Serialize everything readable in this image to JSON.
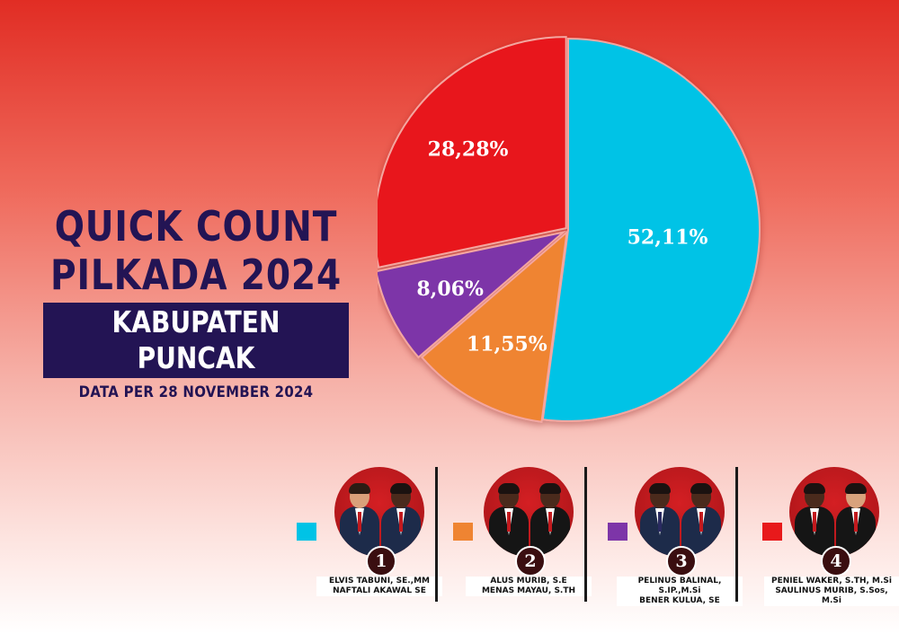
{
  "header": {
    "title_line1": "QUICK COUNT",
    "title_line2": "PILKADA 2024",
    "subtitle": "KABUPATEN PUNCAK",
    "date": "DATA PER 28 NOVEMBER 2024"
  },
  "chart_data": {
    "type": "pie",
    "slices": [
      {
        "label": "52,11%",
        "value": 52.11,
        "color": "#00c3e6"
      },
      {
        "label": "11,55%",
        "value": 11.55,
        "color": "#ef8432"
      },
      {
        "label": "8,06%",
        "value": 8.06,
        "color": "#7d35a8"
      },
      {
        "label": "28,28%",
        "value": 28.28,
        "color": "#e8191b"
      }
    ]
  },
  "candidates": [
    {
      "number": "1",
      "color": "#00c3e6",
      "name1": "ELVIS TABUNI, SE.,MM",
      "name2": "NAFTALI AKAWAL SE"
    },
    {
      "number": "2",
      "color": "#ef8432",
      "name1": "ALUS MURIB, S.E",
      "name2": "MENAS MAYAU, S.TH"
    },
    {
      "number": "3",
      "color": "#7d35a8",
      "name1": "PELINUS BALINAL, S.IP.,M.Si",
      "name2": "BENER KULUA, SE"
    },
    {
      "number": "4",
      "color": "#e8191b",
      "name1": "PENIEL WAKER, S.TH, M.Si",
      "name2": "SAULINUS MURIB, S.Sos, M.Si"
    }
  ]
}
